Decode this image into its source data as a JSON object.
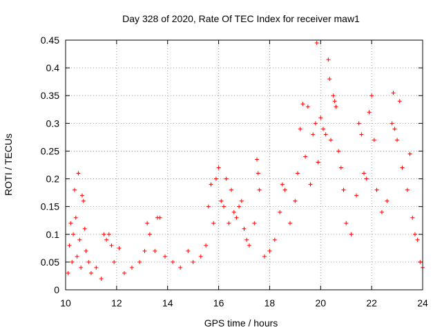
{
  "chart_data": {
    "type": "scatter",
    "title": "Day 328 of 2020, Rate Of TEC Index for receiver maw1",
    "xlabel": "GPS time / hours",
    "ylabel": "ROTI / TECUs",
    "xlim": [
      10,
      24
    ],
    "ylim": [
      0,
      0.45
    ],
    "xticks": [
      10,
      12,
      14,
      16,
      18,
      20,
      22,
      24
    ],
    "xtick_labels": [
      "10",
      "12",
      "14",
      "16",
      "18",
      "20",
      "22",
      "24"
    ],
    "yticks": [
      0,
      0.05,
      0.1,
      0.15,
      0.2,
      0.25,
      0.3,
      0.35,
      0.4,
      0.45
    ],
    "ytick_labels": [
      "0",
      "0.05",
      "0.1",
      "0.15",
      "0.2",
      "0.25",
      "0.3",
      "0.35",
      "0.4",
      "0.45"
    ],
    "grid": true,
    "marker": "+",
    "marker_color": "#ff0000",
    "series": [
      {
        "name": "ROTI",
        "points": [
          [
            10.1,
            0.03
          ],
          [
            10.15,
            0.08
          ],
          [
            10.2,
            0.12
          ],
          [
            10.25,
            0.05
          ],
          [
            10.3,
            0.1
          ],
          [
            10.35,
            0.18
          ],
          [
            10.4,
            0.13
          ],
          [
            10.45,
            0.06
          ],
          [
            10.5,
            0.21
          ],
          [
            10.55,
            0.09
          ],
          [
            10.6,
            0.04
          ],
          [
            10.65,
            0.17
          ],
          [
            10.7,
            0.16
          ],
          [
            10.75,
            0.11
          ],
          [
            10.8,
            0.07
          ],
          [
            10.9,
            0.05
          ],
          [
            11.0,
            0.03
          ],
          [
            11.2,
            0.04
          ],
          [
            11.4,
            0.02
          ],
          [
            11.5,
            0.1
          ],
          [
            11.6,
            0.09
          ],
          [
            11.7,
            0.1
          ],
          [
            11.8,
            0.08
          ],
          [
            11.9,
            0.05
          ],
          [
            12.1,
            0.075
          ],
          [
            12.3,
            0.03
          ],
          [
            12.6,
            0.04
          ],
          [
            12.9,
            0.05
          ],
          [
            13.1,
            0.07
          ],
          [
            13.2,
            0.12
          ],
          [
            13.3,
            0.1
          ],
          [
            13.5,
            0.07
          ],
          [
            13.6,
            0.13
          ],
          [
            13.7,
            0.13
          ],
          [
            13.9,
            0.06
          ],
          [
            14.2,
            0.05
          ],
          [
            14.5,
            0.04
          ],
          [
            14.8,
            0.07
          ],
          [
            15.0,
            0.05
          ],
          [
            15.3,
            0.06
          ],
          [
            15.5,
            0.08
          ],
          [
            15.6,
            0.15
          ],
          [
            15.7,
            0.19
          ],
          [
            15.8,
            0.12
          ],
          [
            15.9,
            0.2
          ],
          [
            16.0,
            0.22
          ],
          [
            16.1,
            0.16
          ],
          [
            16.2,
            0.15
          ],
          [
            16.3,
            0.2
          ],
          [
            16.4,
            0.12
          ],
          [
            16.5,
            0.18
          ],
          [
            16.6,
            0.14
          ],
          [
            16.7,
            0.13
          ],
          [
            16.8,
            0.15
          ],
          [
            16.9,
            0.16
          ],
          [
            17.0,
            0.11
          ],
          [
            17.1,
            0.09
          ],
          [
            17.2,
            0.08
          ],
          [
            17.4,
            0.12
          ],
          [
            17.5,
            0.235
          ],
          [
            17.55,
            0.21
          ],
          [
            17.6,
            0.18
          ],
          [
            17.8,
            0.06
          ],
          [
            18.0,
            0.07
          ],
          [
            18.2,
            0.09
          ],
          [
            18.4,
            0.14
          ],
          [
            18.5,
            0.19
          ],
          [
            18.6,
            0.18
          ],
          [
            18.8,
            0.12
          ],
          [
            19.0,
            0.16
          ],
          [
            19.1,
            0.21
          ],
          [
            19.2,
            0.29
          ],
          [
            19.3,
            0.335
          ],
          [
            19.4,
            0.24
          ],
          [
            19.5,
            0.33
          ],
          [
            19.6,
            0.19
          ],
          [
            19.7,
            0.28
          ],
          [
            19.8,
            0.3
          ],
          [
            19.85,
            0.445
          ],
          [
            19.9,
            0.23
          ],
          [
            20.0,
            0.31
          ],
          [
            20.1,
            0.29
          ],
          [
            20.2,
            0.28
          ],
          [
            20.3,
            0.415
          ],
          [
            20.35,
            0.38
          ],
          [
            20.4,
            0.27
          ],
          [
            20.5,
            0.35
          ],
          [
            20.55,
            0.34
          ],
          [
            20.6,
            0.33
          ],
          [
            20.7,
            0.25
          ],
          [
            20.8,
            0.22
          ],
          [
            20.9,
            0.18
          ],
          [
            21.0,
            0.12
          ],
          [
            21.2,
            0.1
          ],
          [
            21.4,
            0.17
          ],
          [
            21.5,
            0.3
          ],
          [
            21.6,
            0.28
          ],
          [
            21.7,
            0.21
          ],
          [
            21.8,
            0.2
          ],
          [
            21.9,
            0.32
          ],
          [
            22.0,
            0.35
          ],
          [
            22.1,
            0.27
          ],
          [
            22.2,
            0.18
          ],
          [
            22.4,
            0.14
          ],
          [
            22.6,
            0.16
          ],
          [
            22.8,
            0.3
          ],
          [
            22.85,
            0.355
          ],
          [
            22.9,
            0.29
          ],
          [
            23.0,
            0.27
          ],
          [
            23.1,
            0.34
          ],
          [
            23.2,
            0.22
          ],
          [
            23.4,
            0.18
          ],
          [
            23.5,
            0.245
          ],
          [
            23.6,
            0.13
          ],
          [
            23.7,
            0.1
          ],
          [
            23.8,
            0.09
          ],
          [
            23.9,
            0.05
          ],
          [
            24.0,
            0.04
          ]
        ]
      }
    ]
  }
}
